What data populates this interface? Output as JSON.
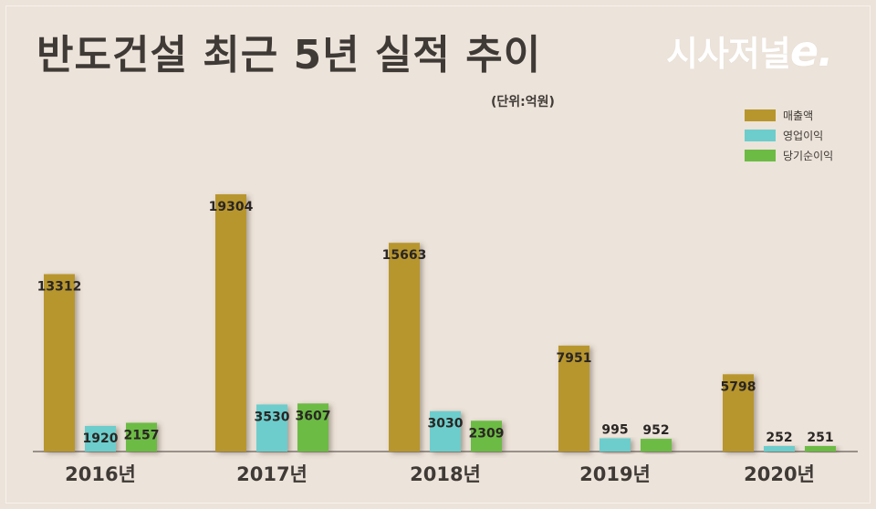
{
  "header": {
    "title": "반도건설 최근 5년 실적 추이",
    "unit": "(단위:억원)",
    "logo": {
      "main": "시사저널",
      "accent": "e."
    }
  },
  "legend": [
    {
      "label": "매출액",
      "color": "#b8962e"
    },
    {
      "label": "영업이익",
      "color": "#6ccdcc"
    },
    {
      "label": "당기순이익",
      "color": "#6cbb44"
    }
  ],
  "chart_data": {
    "type": "bar",
    "title": "반도건설 최근 5년 실적 추이",
    "unit": "(단위:억원)",
    "categories": [
      "2016년",
      "2017년",
      "2018년",
      "2019년",
      "2020년"
    ],
    "series": [
      {
        "name": "매출액",
        "color": "#b8962e",
        "values": [
          13312,
          19304,
          15663,
          7951,
          5798
        ]
      },
      {
        "name": "영업이익",
        "color": "#6ccdcc",
        "values": [
          1920,
          3530,
          3030,
          995,
          252
        ]
      },
      {
        "name": "당기순이익",
        "color": "#6cbb44",
        "values": [
          2157,
          3607,
          2309,
          952,
          251
        ]
      }
    ],
    "ylim": [
      0,
      20000
    ],
    "grid": false,
    "legend_position": "top-right"
  }
}
